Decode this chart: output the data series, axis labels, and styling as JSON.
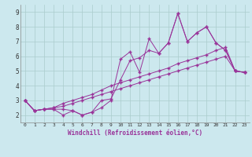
{
  "xlabel": "Windchill (Refroidissement éolien,°C)",
  "bg_color": "#cce8ee",
  "line_color": "#993399",
  "grid_color": "#aacccc",
  "xlim": [
    -0.5,
    23.5
  ],
  "ylim": [
    1.5,
    9.5
  ],
  "xticks": [
    0,
    1,
    2,
    3,
    4,
    5,
    6,
    7,
    8,
    9,
    10,
    11,
    12,
    13,
    14,
    15,
    16,
    17,
    18,
    19,
    20,
    21,
    22,
    23
  ],
  "yticks": [
    2,
    3,
    4,
    5,
    6,
    7,
    8,
    9
  ],
  "series": [
    [
      3.0,
      2.3,
      2.4,
      2.4,
      2.0,
      2.3,
      2.0,
      2.2,
      2.5,
      3.0,
      5.8,
      6.3,
      4.9,
      7.2,
      6.2,
      6.9,
      8.9,
      7.0,
      7.6,
      8.0,
      6.9,
      6.4,
      5.0,
      4.9
    ],
    [
      3.0,
      2.3,
      2.4,
      2.4,
      2.4,
      2.3,
      2.0,
      2.2,
      3.0,
      3.1,
      4.4,
      5.7,
      5.9,
      6.4,
      6.2,
      6.9,
      8.9,
      7.0,
      7.6,
      8.0,
      6.9,
      6.4,
      5.0,
      4.9
    ],
    [
      3.0,
      2.3,
      2.4,
      2.5,
      2.8,
      3.0,
      3.2,
      3.4,
      3.7,
      4.0,
      4.2,
      4.4,
      4.6,
      4.8,
      5.0,
      5.2,
      5.5,
      5.7,
      5.9,
      6.1,
      6.4,
      6.6,
      5.0,
      4.9
    ],
    [
      3.0,
      2.3,
      2.4,
      2.5,
      2.6,
      2.8,
      3.0,
      3.2,
      3.4,
      3.6,
      3.8,
      4.0,
      4.2,
      4.4,
      4.6,
      4.8,
      5.0,
      5.2,
      5.4,
      5.6,
      5.8,
      6.0,
      5.0,
      4.9
    ]
  ]
}
